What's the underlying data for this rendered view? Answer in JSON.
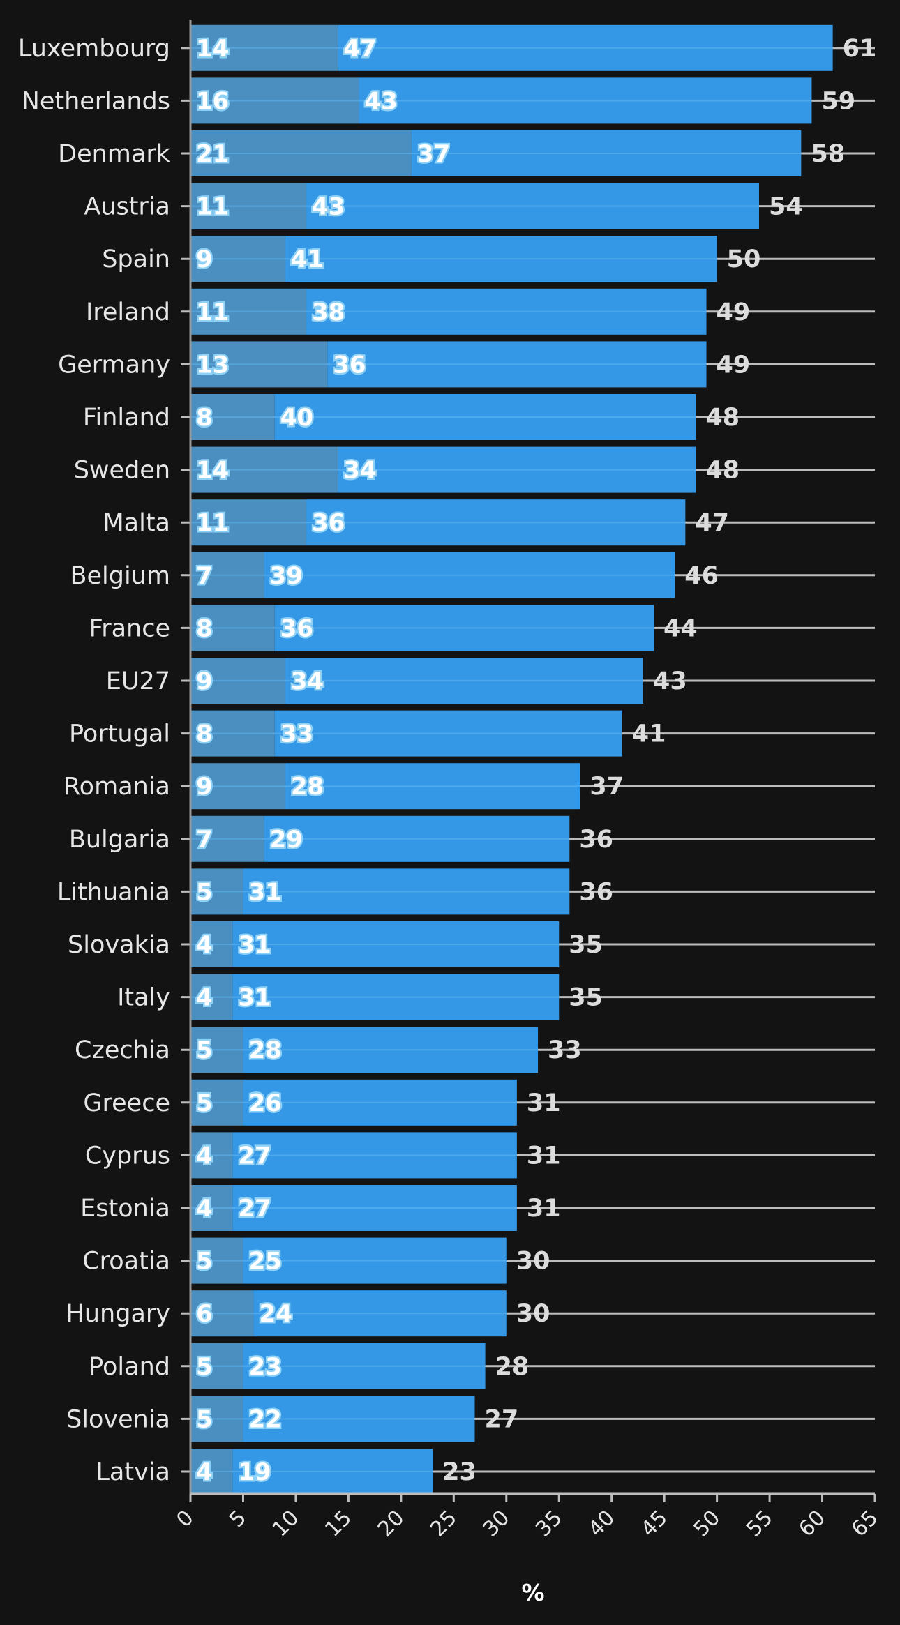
{
  "chart_data": {
    "type": "bar",
    "orientation": "horizontal",
    "stacked": true,
    "xlabel": "%",
    "xlim": [
      0,
      65
    ],
    "xticks": [
      0,
      5,
      10,
      15,
      20,
      25,
      30,
      35,
      40,
      45,
      50,
      55,
      60,
      65
    ],
    "categories": [
      "Luxembourg",
      "Netherlands",
      "Denmark",
      "Austria",
      "Spain",
      "Ireland",
      "Germany",
      "Finland",
      "Sweden",
      "Malta",
      "Belgium",
      "France",
      "EU27",
      "Portugal",
      "Romania",
      "Bulgaria",
      "Lithuania",
      "Slovakia",
      "Italy",
      "Czechia",
      "Greece",
      "Cyprus",
      "Estonia",
      "Croatia",
      "Hungary",
      "Poland",
      "Slovenia",
      "Latvia"
    ],
    "series": [
      {
        "values": [
          14,
          16,
          21,
          11,
          9,
          11,
          13,
          8,
          14,
          11,
          7,
          8,
          9,
          8,
          9,
          7,
          5,
          4,
          4,
          5,
          5,
          4,
          4,
          5,
          6,
          5,
          5,
          4
        ]
      },
      {
        "values": [
          47,
          43,
          37,
          43,
          41,
          38,
          36,
          40,
          34,
          36,
          39,
          36,
          34,
          33,
          28,
          29,
          31,
          31,
          31,
          28,
          26,
          27,
          27,
          25,
          24,
          23,
          22,
          19
        ]
      }
    ],
    "totals": [
      61,
      59,
      58,
      54,
      50,
      49,
      49,
      48,
      48,
      47,
      46,
      44,
      43,
      41,
      37,
      36,
      36,
      35,
      35,
      33,
      31,
      31,
      31,
      30,
      30,
      28,
      27,
      23
    ],
    "colors": {
      "background": "#131313",
      "series1": "#4a8fc0",
      "series2": "#3498e6",
      "gridline": "#bdbdbd",
      "text": "#e6e6e6"
    },
    "grid": true,
    "legend": "none"
  }
}
